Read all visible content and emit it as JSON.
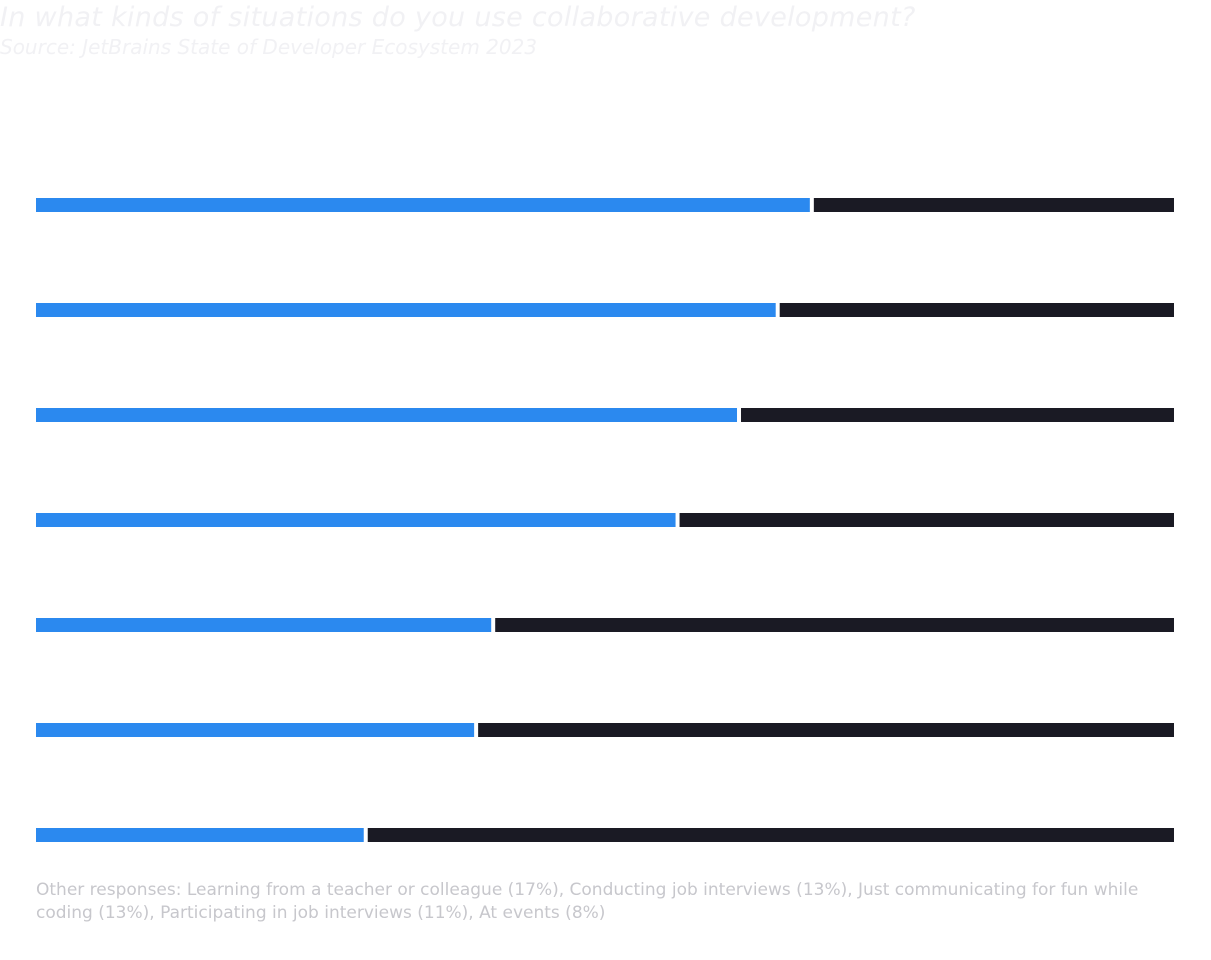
{
  "title": "In what kinds of situations do you use collaborative development?",
  "subtitle": "Source: JetBrains State of Developer Ecosystem 2023",
  "colors": {
    "yes": "#2b89ef",
    "remainder": "#1a1a24",
    "background": "#ffffff"
  },
  "chart_data": {
    "type": "bar",
    "orientation": "horizontal",
    "stacked": true,
    "xlim": [
      0,
      100
    ],
    "series": [
      {
        "values": [
          68,
          65,
          61.6,
          56.2,
          40,
          38.5,
          28.8
        ]
      },
      {
        "values": [
          32,
          35,
          38.4,
          43.8,
          60,
          61.5,
          71.2
        ]
      }
    ],
    "legend": "none",
    "grid": false
  },
  "footnote": "Other responses: Learning from a teacher or colleague (17%), Conducting job interviews (13%), Just communicating for fun while coding (13%), Participating in job interviews (11%), At events (8%)"
}
